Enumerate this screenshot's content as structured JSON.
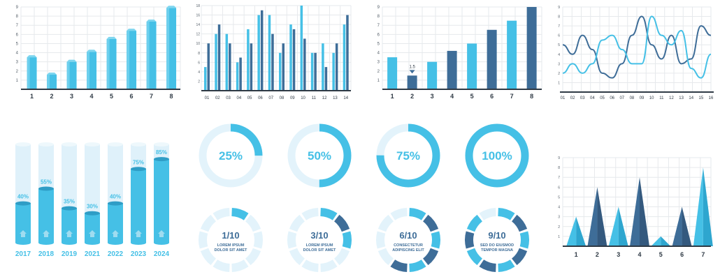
{
  "colors": {
    "light": "#45c0e6",
    "light_top": "#7fd6ef",
    "dark": "#3e6d98",
    "dark_top": "#5d89b4",
    "pale": "#dff1fa",
    "pale_ring": "#e3f3fb",
    "axis": "#2f3a45",
    "grid": "#e6e9ec",
    "tick": "#555f69",
    "text": "#45c0e6",
    "dark_text": "#3e6d98"
  },
  "chart_data": [
    {
      "id": "bars3d",
      "type": "bar",
      "categories": [
        "1",
        "2",
        "3",
        "4",
        "5",
        "6",
        "7",
        "8"
      ],
      "values": [
        3.5,
        1.6,
        3.0,
        4.1,
        5.5,
        6.4,
        7.4,
        8.9
      ],
      "y_ticks": [
        "1",
        "2",
        "3",
        "4",
        "5",
        "6",
        "7",
        "8",
        "9"
      ],
      "ylim": [
        0,
        9
      ],
      "grid": true
    },
    {
      "id": "paired",
      "type": "bar",
      "categories": [
        "01",
        "02",
        "03",
        "04",
        "05",
        "06",
        "07",
        "08",
        "09",
        "10",
        "11",
        "12",
        "13",
        "14"
      ],
      "series": [
        {
          "values": [
            5,
            12,
            12,
            6,
            13,
            16,
            16,
            8,
            14,
            18,
            8,
            10,
            8,
            14
          ]
        },
        {
          "values": [
            10,
            14,
            10,
            7,
            10,
            17,
            12,
            10,
            13,
            11,
            8,
            5,
            10,
            16
          ]
        }
      ],
      "y_ticks": [
        "2",
        "4",
        "6",
        "8",
        "10",
        "12",
        "14",
        "16",
        "18"
      ],
      "ylim": [
        0,
        18
      ],
      "grid": true
    },
    {
      "id": "flatbars",
      "type": "bar",
      "categories": [
        "1",
        "2",
        "3",
        "4",
        "5",
        "6",
        "7",
        "8"
      ],
      "values": [
        3.5,
        1.5,
        3.0,
        4.2,
        5.0,
        6.5,
        7.5,
        9.0
      ],
      "bar_colors": [
        "light",
        "dark",
        "light",
        "dark",
        "light",
        "dark",
        "light",
        "dark"
      ],
      "annotation": {
        "index": 1,
        "label": "1.5"
      },
      "y_ticks": [
        "1",
        "2",
        "3",
        "4",
        "5",
        "6",
        "7",
        "8",
        "9"
      ],
      "ylim": [
        0,
        9
      ],
      "grid": true
    },
    {
      "id": "lines",
      "type": "line",
      "x": [
        "01",
        "02",
        "03",
        "04",
        "05",
        "06",
        "07",
        "08",
        "09",
        "10",
        "11",
        "12",
        "13",
        "14",
        "15",
        "16"
      ],
      "series": [
        {
          "color": "dark",
          "values": [
            5,
            4,
            6,
            4.5,
            2,
            1.5,
            3,
            6,
            8,
            5,
            3.5,
            6,
            3,
            3.5,
            7,
            6
          ]
        },
        {
          "color": "light",
          "values": [
            2,
            3,
            2,
            3,
            5.5,
            6,
            4.5,
            3,
            3,
            8,
            6,
            5,
            6.5,
            2.5,
            1.5,
            4
          ]
        }
      ],
      "y_ticks": [
        "1",
        "2",
        "3",
        "4",
        "5",
        "6",
        "7",
        "8",
        "9"
      ],
      "ylim": [
        0,
        9
      ],
      "grid": true
    },
    {
      "id": "cylinders",
      "type": "bar",
      "categories": [
        "2017",
        "2018",
        "2019",
        "2021",
        "2022",
        "2023",
        "2024"
      ],
      "values": [
        40,
        55,
        35,
        30,
        40,
        75,
        85
      ],
      "labels": [
        "40%",
        "55%",
        "35%",
        "30%",
        "40%",
        "75%",
        "85%"
      ],
      "ylim": [
        0,
        100
      ]
    },
    {
      "id": "donuts",
      "type": "pie",
      "items": [
        {
          "value": 25,
          "label": "25%"
        },
        {
          "value": 50,
          "label": "50%"
        },
        {
          "value": 75,
          "label": "75%"
        },
        {
          "value": 100,
          "label": "100%"
        }
      ]
    },
    {
      "id": "segments",
      "type": "pie",
      "items": [
        {
          "value": 1,
          "of": 10,
          "label": "1/10",
          "line1": "LOREM IPSUM",
          "line2": "DOLOR SIT AMET"
        },
        {
          "value": 3,
          "of": 10,
          "label": "3/10",
          "line1": "LOREM IPSUM",
          "line2": "DOLOR SIT AMET"
        },
        {
          "value": 6,
          "of": 10,
          "label": "6/10",
          "line1": "CONSECTETUR",
          "line2": "ADIPISCING ELIT"
        },
        {
          "value": 9,
          "of": 10,
          "label": "9/10",
          "line1": "SED DO EIUSMOD",
          "line2": "TEMPOR MAGNA"
        }
      ]
    },
    {
      "id": "triangles",
      "type": "area",
      "categories": [
        "1",
        "2",
        "3",
        "4",
        "5",
        "6",
        "7"
      ],
      "values": [
        3,
        6,
        4,
        7,
        1,
        4,
        8
      ],
      "y_ticks": [
        "1",
        "2",
        "3",
        "4",
        "5",
        "6",
        "7",
        "8",
        "9"
      ],
      "ylim": [
        0,
        9
      ],
      "grid": true
    }
  ]
}
